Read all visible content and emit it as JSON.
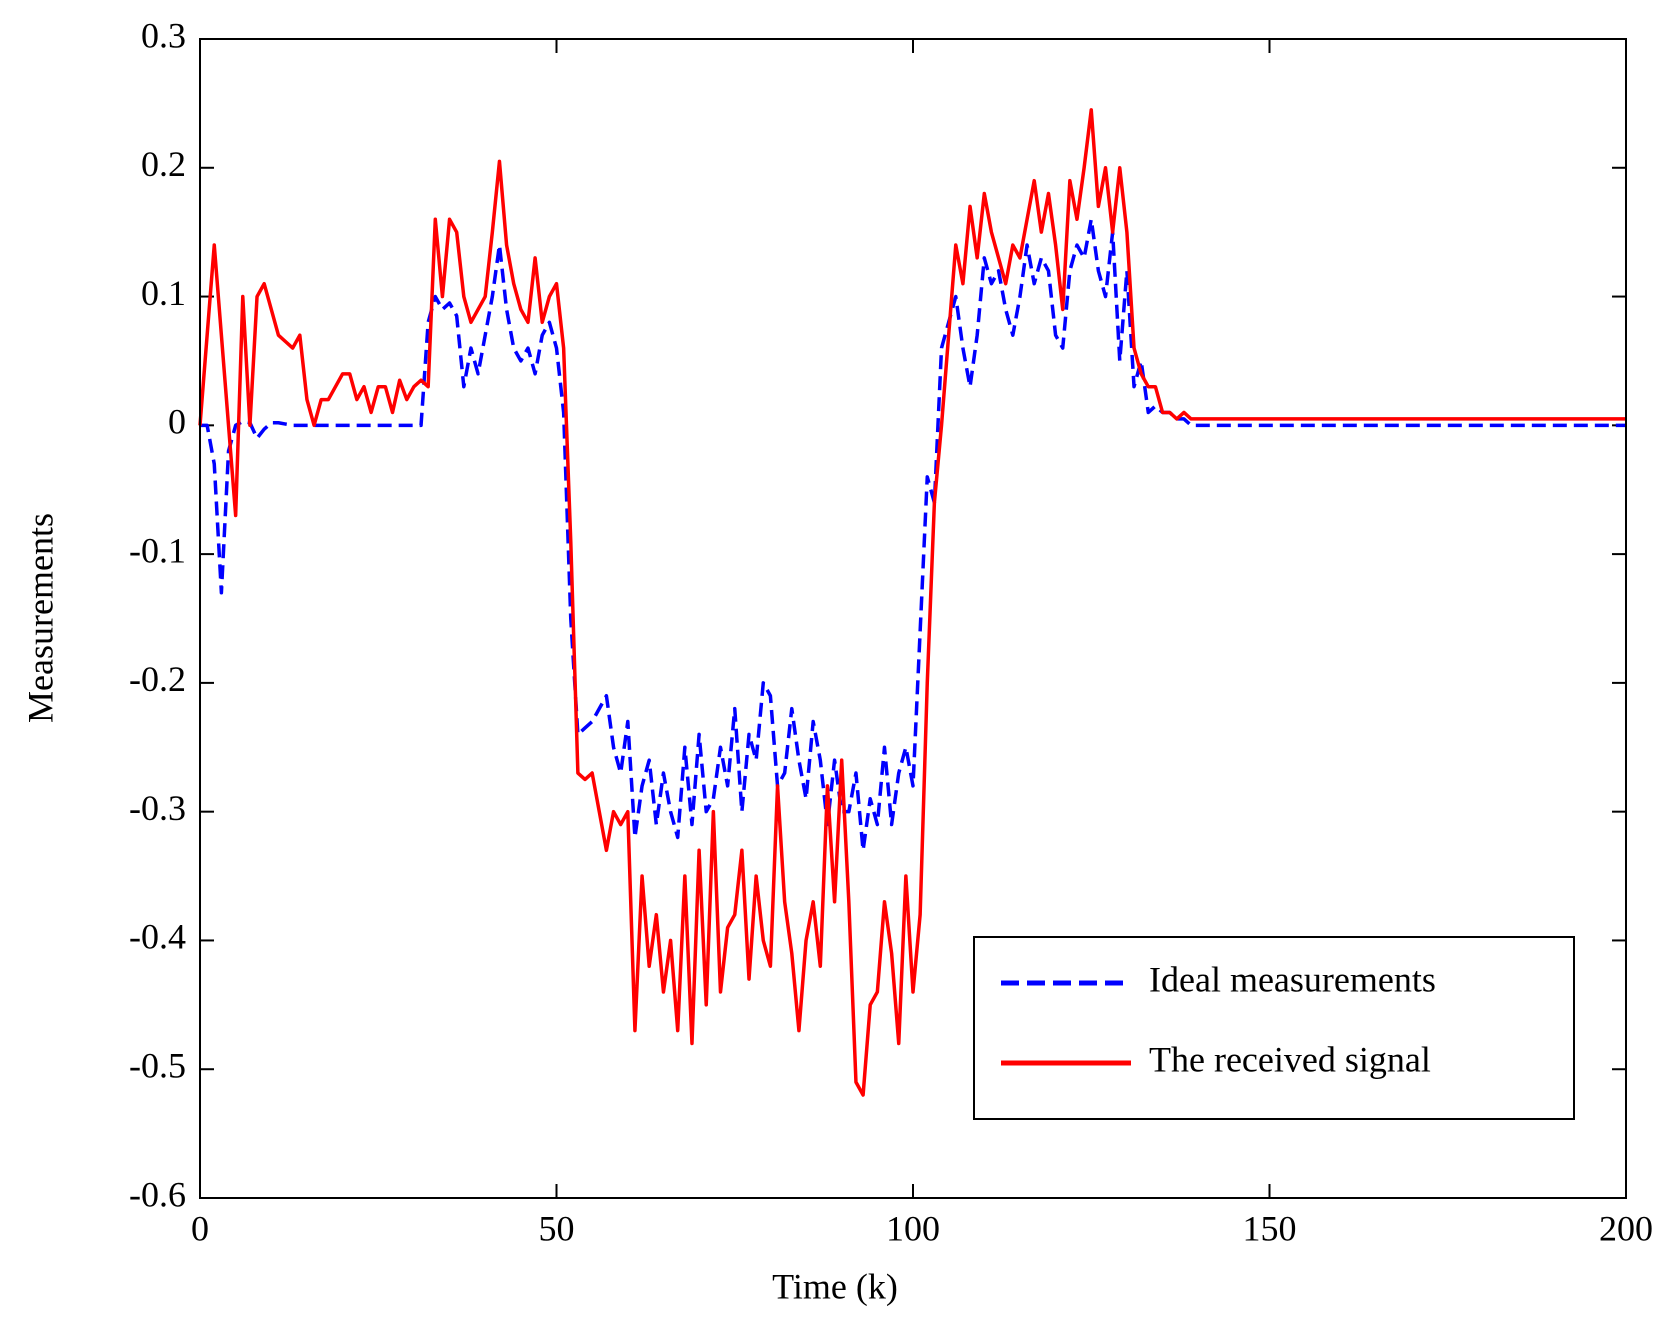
{
  "chart_data": {
    "type": "line",
    "xlabel": "Time (k)",
    "ylabel": "Measurements",
    "xlim": [
      0,
      200
    ],
    "ylim": [
      -0.6,
      0.3
    ],
    "xticks": [
      0,
      50,
      100,
      150,
      200
    ],
    "yticks": [
      -0.6,
      -0.5,
      -0.4,
      -0.3,
      -0.2,
      -0.1,
      0,
      0.1,
      0.2,
      0.3
    ],
    "legend": "lower right",
    "x": [
      0,
      1,
      2,
      3,
      4,
      5,
      6,
      7,
      8,
      9,
      10,
      11,
      12,
      13,
      14,
      15,
      16,
      17,
      18,
      19,
      20,
      21,
      22,
      23,
      24,
      25,
      26,
      27,
      28,
      29,
      30,
      31,
      32,
      33,
      34,
      35,
      36,
      37,
      38,
      39,
      40,
      41,
      42,
      43,
      44,
      45,
      46,
      47,
      48,
      49,
      50,
      51,
      52,
      53,
      54,
      55,
      56,
      57,
      58,
      59,
      60,
      61,
      62,
      63,
      64,
      65,
      66,
      67,
      68,
      69,
      70,
      71,
      72,
      73,
      74,
      75,
      76,
      77,
      78,
      79,
      80,
      81,
      82,
      83,
      84,
      85,
      86,
      87,
      88,
      89,
      90,
      91,
      92,
      93,
      94,
      95,
      96,
      97,
      98,
      99,
      100,
      101,
      102,
      103,
      104,
      105,
      106,
      107,
      108,
      109,
      110,
      111,
      112,
      113,
      114,
      115,
      116,
      117,
      118,
      119,
      120,
      121,
      122,
      123,
      124,
      125,
      126,
      127,
      128,
      129,
      130,
      131,
      132,
      133,
      134,
      135,
      136,
      137,
      138,
      139,
      140,
      145,
      150,
      155,
      160,
      165,
      170,
      175,
      180,
      185,
      190,
      195,
      200
    ],
    "series": [
      {
        "name": "Ideal measurements",
        "color": "#0000ff",
        "dash": true,
        "values": [
          0,
          0,
          -0.03,
          -0.13,
          -0.02,
          0,
          0.003,
          0.002,
          -0.01,
          -0.003,
          0.002,
          0.002,
          0.001,
          0,
          0,
          0,
          0,
          0,
          0,
          0,
          0,
          0,
          0,
          0,
          0,
          0,
          0,
          0,
          0,
          0,
          0,
          0,
          0.08,
          0.1,
          0.09,
          0.095,
          0.085,
          0.03,
          0.06,
          0.04,
          0.07,
          0.1,
          0.14,
          0.09,
          0.06,
          0.05,
          0.06,
          0.04,
          0.07,
          0.08,
          0.06,
          0.01,
          -0.15,
          -0.24,
          -0.235,
          -0.23,
          -0.22,
          -0.21,
          -0.25,
          -0.27,
          -0.23,
          -0.32,
          -0.28,
          -0.26,
          -0.31,
          -0.27,
          -0.3,
          -0.32,
          -0.25,
          -0.31,
          -0.24,
          -0.3,
          -0.29,
          -0.25,
          -0.28,
          -0.22,
          -0.3,
          -0.24,
          -0.26,
          -0.2,
          -0.21,
          -0.28,
          -0.27,
          -0.22,
          -0.26,
          -0.29,
          -0.23,
          -0.26,
          -0.31,
          -0.26,
          -0.3,
          -0.3,
          -0.27,
          -0.33,
          -0.29,
          -0.31,
          -0.25,
          -0.31,
          -0.27,
          -0.25,
          -0.28,
          -0.16,
          -0.04,
          -0.06,
          0.06,
          0.08,
          0.1,
          0.06,
          0.03,
          0.07,
          0.13,
          0.11,
          0.12,
          0.09,
          0.07,
          0.1,
          0.14,
          0.11,
          0.13,
          0.12,
          0.07,
          0.06,
          0.12,
          0.14,
          0.13,
          0.16,
          0.12,
          0.1,
          0.15,
          0.05,
          0.12,
          0.03,
          0.05,
          0.01,
          0.015,
          0.01,
          0.01,
          0.005,
          0.005,
          0,
          0,
          0,
          0,
          0,
          0,
          0,
          0,
          0,
          0,
          0,
          0,
          0,
          0
        ]
      },
      {
        "name": "The received signal",
        "color": "#ff0000",
        "dash": false,
        "values": [
          0,
          0.07,
          0.14,
          0.07,
          0,
          -0.07,
          0.1,
          0,
          0.1,
          0.11,
          0.09,
          0.07,
          0.065,
          0.06,
          0.07,
          0.02,
          0,
          0.02,
          0.02,
          0.03,
          0.04,
          0.04,
          0.02,
          0.03,
          0.01,
          0.03,
          0.03,
          0.01,
          0.035,
          0.02,
          0.03,
          0.035,
          0.03,
          0.16,
          0.1,
          0.16,
          0.15,
          0.1,
          0.08,
          0.09,
          0.1,
          0.15,
          0.205,
          0.14,
          0.11,
          0.09,
          0.08,
          0.13,
          0.08,
          0.1,
          0.11,
          0.06,
          -0.09,
          -0.27,
          -0.275,
          -0.27,
          -0.3,
          -0.33,
          -0.3,
          -0.31,
          -0.3,
          -0.47,
          -0.35,
          -0.42,
          -0.38,
          -0.44,
          -0.4,
          -0.47,
          -0.35,
          -0.48,
          -0.33,
          -0.45,
          -0.3,
          -0.44,
          -0.39,
          -0.38,
          -0.33,
          -0.43,
          -0.35,
          -0.4,
          -0.42,
          -0.28,
          -0.37,
          -0.41,
          -0.47,
          -0.4,
          -0.37,
          -0.42,
          -0.28,
          -0.37,
          -0.26,
          -0.37,
          -0.51,
          -0.52,
          -0.45,
          -0.44,
          -0.37,
          -0.41,
          -0.48,
          -0.35,
          -0.44,
          -0.38,
          -0.2,
          -0.06,
          0,
          0.07,
          0.14,
          0.11,
          0.17,
          0.13,
          0.18,
          0.15,
          0.13,
          0.11,
          0.14,
          0.13,
          0.16,
          0.19,
          0.15,
          0.18,
          0.14,
          0.09,
          0.19,
          0.16,
          0.2,
          0.245,
          0.17,
          0.2,
          0.15,
          0.2,
          0.15,
          0.06,
          0.04,
          0.03,
          0.03,
          0.01,
          0.01,
          0.005,
          0.01,
          0.005,
          0.005,
          0.005,
          0.005,
          0.005,
          0.005,
          0.005,
          0.005,
          0.005,
          0.005,
          0.005,
          0.005,
          0.005,
          0.005
        ]
      }
    ]
  }
}
